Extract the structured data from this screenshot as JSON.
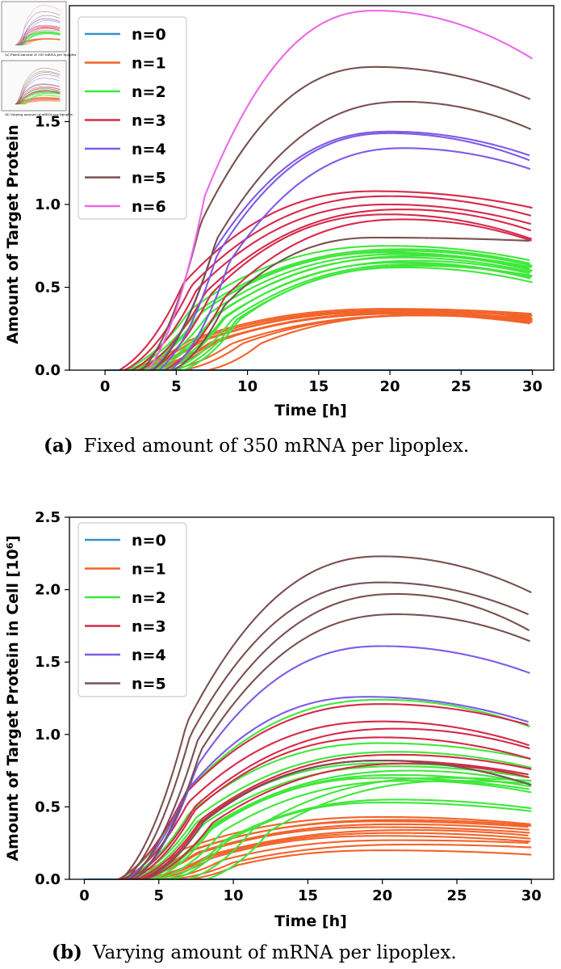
{
  "colors": {
    "n0": "#3a8fc8",
    "n1": "#f2632a",
    "n2": "#3fe83b",
    "n3": "#d62a4a",
    "n4": "#7e5be6",
    "n5": "#7a5050",
    "n6": "#ea6ae6",
    "extra": "#b73a3a"
  },
  "thumbnail": {
    "caption_a": "(a) Fixed amount of 350 mRNA per lipoplex",
    "caption_b": "(b) Varying amount of mRNA per lipoplex"
  },
  "captions": {
    "a_label": "(a)",
    "a_text": "Fixed amount of 350 mRNA per lipoplex.",
    "b_label": "(b)",
    "b_text": "Varying amount of mRNA per lipoplex."
  },
  "chart_data": [
    {
      "id": "a",
      "type": "line",
      "title": "",
      "xlabel": "Time [h]",
      "ylabel": "Amount of Target Protein",
      "xlim": [
        -2.5,
        31.5
      ],
      "ylim": [
        0,
        2.2
      ],
      "xticks": [
        0,
        5,
        10,
        15,
        20,
        25,
        30
      ],
      "xtick_labels": [
        "0",
        "5",
        "10",
        "15",
        "20",
        "25",
        "30"
      ],
      "yticks": [
        0,
        0.5,
        1.0,
        1.5
      ],
      "ytick_labels": [
        "0.0",
        "0.5",
        "1.0",
        "1.5"
      ],
      "legend": [
        "n=0",
        "n=1",
        "n=2",
        "n=3",
        "n=4",
        "n=5",
        "n=6"
      ],
      "legend_position": "top-left",
      "series": [
        {
          "name": "n=0",
          "color_key": "n0",
          "curves": [
            {
              "start": 0,
              "peak_t": 20,
              "peak": 0.0,
              "end": 0.0
            }
          ]
        },
        {
          "name": "n=1",
          "color_key": "n1",
          "curves": [
            {
              "start": 1.2,
              "peak_t": 20,
              "peak": 0.37,
              "end": 0.34
            },
            {
              "start": 1.5,
              "peak_t": 20,
              "peak": 0.36,
              "end": 0.33
            },
            {
              "start": 1.8,
              "peak_t": 21,
              "peak": 0.36,
              "end": 0.32
            },
            {
              "start": 2.2,
              "peak_t": 20,
              "peak": 0.35,
              "end": 0.31
            },
            {
              "start": 2.6,
              "peak_t": 22,
              "peak": 0.35,
              "end": 0.3
            },
            {
              "start": 3.0,
              "peak_t": 21,
              "peak": 0.34,
              "end": 0.29
            },
            {
              "start": 3.6,
              "peak_t": 20,
              "peak": 0.34,
              "end": 0.28
            },
            {
              "start": 4.5,
              "peak_t": 22,
              "peak": 0.33,
              "end": 0.3
            },
            {
              "start": 5.5,
              "peak_t": 22,
              "peak": 0.33,
              "end": 0.31
            },
            {
              "start": 7.2,
              "peak_t": 22,
              "peak": 0.33,
              "end": 0.32
            }
          ]
        },
        {
          "name": "n=2",
          "color_key": "n2",
          "curves": [
            {
              "start": 1.3,
              "peak_t": 20,
              "peak": 0.75,
              "end": 0.66
            },
            {
              "start": 1.6,
              "peak_t": 21,
              "peak": 0.73,
              "end": 0.64
            },
            {
              "start": 2.0,
              "peak_t": 21,
              "peak": 0.72,
              "end": 0.63
            },
            {
              "start": 2.3,
              "peak_t": 20,
              "peak": 0.71,
              "end": 0.61
            },
            {
              "start": 2.7,
              "peak_t": 21,
              "peak": 0.7,
              "end": 0.62
            },
            {
              "start": 3.0,
              "peak_t": 22,
              "peak": 0.69,
              "end": 0.6
            },
            {
              "start": 3.4,
              "peak_t": 21,
              "peak": 0.68,
              "end": 0.59
            },
            {
              "start": 3.8,
              "peak_t": 22,
              "peak": 0.66,
              "end": 0.58
            },
            {
              "start": 4.2,
              "peak_t": 21,
              "peak": 0.65,
              "end": 0.56
            },
            {
              "start": 4.6,
              "peak_t": 22,
              "peak": 0.64,
              "end": 0.55
            },
            {
              "start": 5.0,
              "peak_t": 22,
              "peak": 0.63,
              "end": 0.57
            },
            {
              "start": 5.5,
              "peak_t": 21,
              "peak": 0.62,
              "end": 0.53
            }
          ]
        },
        {
          "name": "n=3",
          "color_key": "n3",
          "curves": [
            {
              "start": 1.0,
              "peak_t": 19,
              "peak": 1.08,
              "end": 0.98
            },
            {
              "start": 1.4,
              "peak_t": 20,
              "peak": 1.05,
              "end": 0.93
            },
            {
              "start": 1.9,
              "peak_t": 20,
              "peak": 1.0,
              "end": 0.88
            },
            {
              "start": 2.4,
              "peak_t": 21,
              "peak": 0.97,
              "end": 0.84
            },
            {
              "start": 3.2,
              "peak_t": 20,
              "peak": 0.94,
              "end": 0.79
            },
            {
              "start": 4.2,
              "peak_t": 21,
              "peak": 0.91,
              "end": 0.78
            }
          ]
        },
        {
          "name": "n=4",
          "color_key": "n4",
          "curves": [
            {
              "start": 3.3,
              "peak_t": 20,
              "peak": 1.44,
              "end": 1.29
            },
            {
              "start": 3.8,
              "peak_t": 20,
              "peak": 1.43,
              "end": 1.26
            },
            {
              "start": 4.6,
              "peak_t": 21,
              "peak": 1.34,
              "end": 1.21
            }
          ]
        },
        {
          "name": "n=5",
          "color_key": "n5",
          "curves": [
            {
              "start": 2.6,
              "peak_t": 19,
              "peak": 1.83,
              "end": 1.63
            },
            {
              "start": 3.4,
              "peak_t": 21,
              "peak": 1.62,
              "end": 1.45
            },
            {
              "start": 4.8,
              "peak_t": 19,
              "peak": 0.8,
              "end": 0.78
            }
          ]
        },
        {
          "name": "n=6",
          "color_key": "n6",
          "curves": [
            {
              "start": 3.0,
              "peak_t": 19,
              "peak": 2.17,
              "end": 1.88
            }
          ]
        }
      ]
    },
    {
      "id": "b",
      "type": "line",
      "title": "",
      "xlabel": "Time [h]",
      "ylabel": "Amount of Target Protein in Cell [10⁶]",
      "xlim": [
        -1,
        31.5
      ],
      "ylim": [
        0,
        2.5
      ],
      "xticks": [
        0,
        5,
        10,
        15,
        20,
        25,
        30
      ],
      "xtick_labels": [
        "0",
        "5",
        "10",
        "15",
        "20",
        "25",
        "30"
      ],
      "yticks": [
        0,
        0.5,
        1.0,
        1.5,
        2.0,
        2.5
      ],
      "ytick_labels": [
        "0.0",
        "0.5",
        "1.0",
        "1.5",
        "2.0",
        "2.5"
      ],
      "legend": [
        "n=0",
        "n=1",
        "n=2",
        "n=3",
        "n=4",
        "n=5"
      ],
      "legend_position": "top-left",
      "series": [
        {
          "name": "n=0",
          "color_key": "n0",
          "curves": [
            {
              "start": 0,
              "peak_t": 20,
              "peak": 0.0,
              "end": 0.0
            }
          ]
        },
        {
          "name": "n=1",
          "color_key": "n1",
          "curves": [
            {
              "start": 2.2,
              "peak_t": 20,
              "peak": 0.43,
              "end": 0.38
            },
            {
              "start": 2.5,
              "peak_t": 21,
              "peak": 0.41,
              "end": 0.37
            },
            {
              "start": 2.8,
              "peak_t": 20,
              "peak": 0.4,
              "end": 0.36
            },
            {
              "start": 3.1,
              "peak_t": 21,
              "peak": 0.38,
              "end": 0.34
            },
            {
              "start": 3.4,
              "peak_t": 20,
              "peak": 0.36,
              "end": 0.32
            },
            {
              "start": 3.8,
              "peak_t": 22,
              "peak": 0.34,
              "end": 0.3
            },
            {
              "start": 4.2,
              "peak_t": 21,
              "peak": 0.32,
              "end": 0.28
            },
            {
              "start": 4.7,
              "peak_t": 20,
              "peak": 0.3,
              "end": 0.26
            },
            {
              "start": 5.3,
              "peak_t": 21,
              "peak": 0.27,
              "end": 0.25
            },
            {
              "start": 6.0,
              "peak_t": 22,
              "peak": 0.24,
              "end": 0.22
            },
            {
              "start": 7.0,
              "peak_t": 20,
              "peak": 0.2,
              "end": 0.17
            }
          ]
        },
        {
          "name": "n=2",
          "color_key": "n2",
          "curves": [
            {
              "start": 2.4,
              "peak_t": 20,
              "peak": 1.24,
              "end": 1.05
            },
            {
              "start": 2.7,
              "peak_t": 20,
              "peak": 0.94,
              "end": 0.83
            },
            {
              "start": 3.0,
              "peak_t": 21,
              "peak": 0.88,
              "end": 0.77
            },
            {
              "start": 3.3,
              "peak_t": 20,
              "peak": 0.8,
              "end": 0.72
            },
            {
              "start": 3.6,
              "peak_t": 21,
              "peak": 0.78,
              "end": 0.7
            },
            {
              "start": 3.9,
              "peak_t": 22,
              "peak": 0.75,
              "end": 0.66
            },
            {
              "start": 4.2,
              "peak_t": 21,
              "peak": 0.72,
              "end": 0.64
            },
            {
              "start": 4.6,
              "peak_t": 20,
              "peak": 0.7,
              "end": 0.62
            },
            {
              "start": 5.0,
              "peak_t": 22,
              "peak": 0.68,
              "end": 0.6
            },
            {
              "start": 5.5,
              "peak_t": 21,
              "peak": 0.55,
              "end": 0.49
            },
            {
              "start": 6.0,
              "peak_t": 20,
              "peak": 0.53,
              "end": 0.47
            },
            {
              "start": 7.0,
              "peak_t": 24,
              "peak": 0.7,
              "end": 0.68
            },
            {
              "start": 8.2,
              "peak_t": 25,
              "peak": 0.68,
              "end": 0.66
            }
          ]
        },
        {
          "name": "n=3",
          "color_key": "n3",
          "curves": [
            {
              "start": 2.3,
              "peak_t": 20,
              "peak": 1.21,
              "end": 1.06
            },
            {
              "start": 2.6,
              "peak_t": 20,
              "peak": 1.09,
              "end": 0.92
            },
            {
              "start": 2.9,
              "peak_t": 21,
              "peak": 1.04,
              "end": 0.9
            },
            {
              "start": 3.2,
              "peak_t": 20,
              "peak": 0.98,
              "end": 0.83
            },
            {
              "start": 3.5,
              "peak_t": 21,
              "peak": 0.86,
              "end": 0.76
            },
            {
              "start": 3.8,
              "peak_t": 20,
              "peak": 0.82,
              "end": 0.72
            },
            {
              "start": 4.1,
              "peak_t": 22,
              "peak": 0.8,
              "end": 0.7
            }
          ]
        },
        {
          "name": "n=4",
          "color_key": "n4",
          "curves": [
            {
              "start": 2.8,
              "peak_t": 19,
              "peak": 1.26,
              "end": 1.08
            },
            {
              "start": 3.4,
              "peak_t": 20,
              "peak": 1.61,
              "end": 1.42
            }
          ]
        },
        {
          "name": "n=5",
          "color_key": "n5",
          "curves": [
            {
              "start": 2.5,
              "peak_t": 20,
              "peak": 2.23,
              "end": 1.98
            },
            {
              "start": 2.8,
              "peak_t": 20,
              "peak": 2.05,
              "end": 1.82
            },
            {
              "start": 3.1,
              "peak_t": 21,
              "peak": 1.97,
              "end": 1.71
            },
            {
              "start": 3.4,
              "peak_t": 21,
              "peak": 1.83,
              "end": 1.64
            },
            {
              "start": 4.0,
              "peak_t": 20,
              "peak": 0.82,
              "end": 0.65
            }
          ]
        }
      ]
    }
  ]
}
